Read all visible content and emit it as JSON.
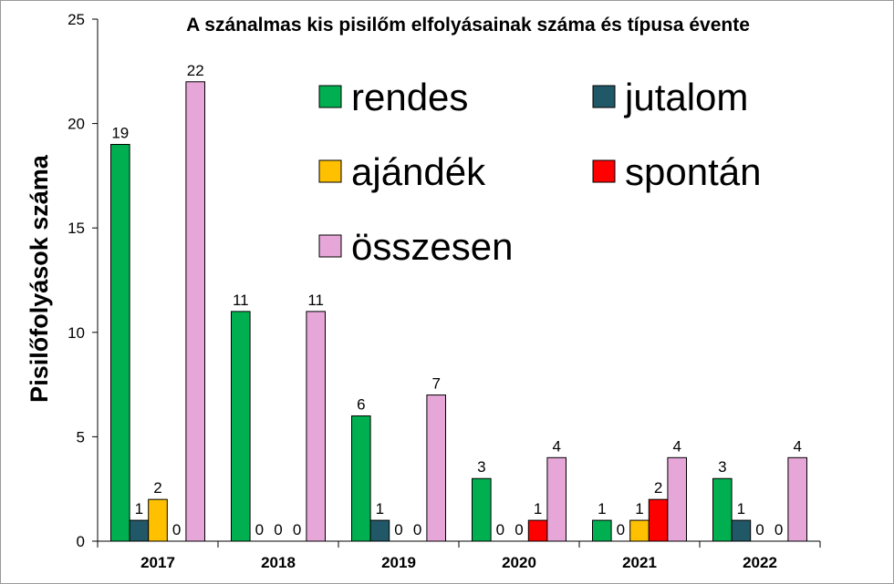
{
  "chart_data": {
    "type": "bar",
    "title": "A szánalmas kis pisilőm elfolyásainak száma és típusa évente",
    "xlabel": "",
    "ylabel": "Pisilőfolyások száma",
    "ylim": [
      0,
      25
    ],
    "yticks": [
      0,
      5,
      10,
      15,
      20,
      25
    ],
    "grid": false,
    "legend_position": "top-right",
    "categories": [
      "2017",
      "2018",
      "2019",
      "2020",
      "2021",
      "2022"
    ],
    "series": [
      {
        "name": "rendes",
        "color": "#00b050",
        "values": [
          19,
          11,
          6,
          3,
          1,
          3
        ]
      },
      {
        "name": "jutalom",
        "color": "#215868",
        "values": [
          1,
          0,
          1,
          0,
          0,
          1
        ]
      },
      {
        "name": "ajándék",
        "color": "#ffc000",
        "values": [
          2,
          0,
          0,
          0,
          1,
          0
        ]
      },
      {
        "name": "spontán",
        "color": "#ff0000",
        "values": [
          0,
          0,
          0,
          1,
          2,
          0
        ]
      },
      {
        "name": "összesen",
        "color": "#e6a6d8",
        "values": [
          22,
          11,
          7,
          4,
          4,
          4
        ]
      }
    ],
    "legend_order": [
      "rendes",
      "jutalom",
      "ajándék",
      "spontán",
      "összesen"
    ]
  }
}
